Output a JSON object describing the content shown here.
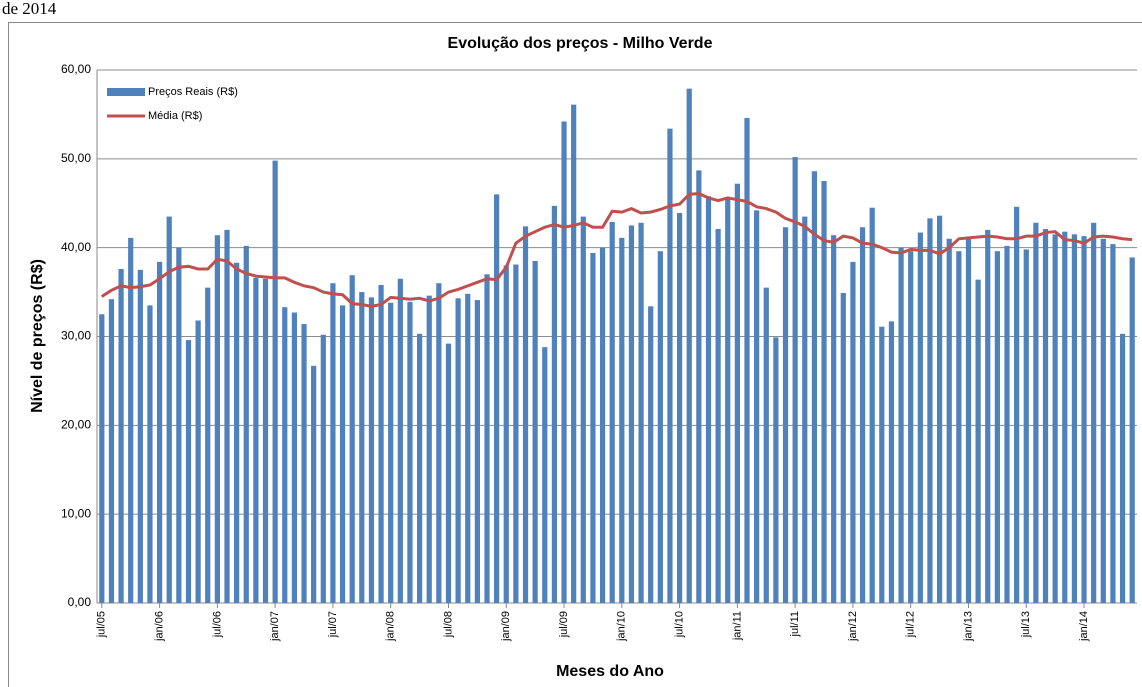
{
  "header_text": "de 2014",
  "chart_data": {
    "type": "bar",
    "title": "Evolução dos preços - Milho Verde",
    "x_label": "Meses do Ano",
    "y_label": "Nível de preços (R$)",
    "categories": [
      "jul/05",
      null,
      null,
      null,
      null,
      null,
      "jan/06",
      null,
      null,
      null,
      null,
      null,
      "jul/06",
      null,
      null,
      null,
      null,
      null,
      "jan/07",
      null,
      null,
      null,
      null,
      null,
      "jul/07",
      null,
      null,
      null,
      null,
      null,
      "jan/08",
      null,
      null,
      null,
      null,
      null,
      "jul/08",
      null,
      null,
      null,
      null,
      null,
      "jan/09",
      null,
      null,
      null,
      null,
      null,
      "jul/09",
      null,
      null,
      null,
      null,
      null,
      "jan/10",
      null,
      null,
      null,
      null,
      null,
      "jul/10",
      null,
      null,
      null,
      null,
      null,
      "jan/11",
      null,
      null,
      null,
      null,
      null,
      "jul/11",
      null,
      null,
      null,
      null,
      null,
      "jan/12",
      null,
      null,
      null,
      null,
      null,
      "jul/12",
      null,
      null,
      null,
      null,
      null,
      "jan/13",
      null,
      null,
      null,
      null,
      null,
      "jul/13",
      null,
      null,
      null,
      null,
      null,
      "jan/14",
      null,
      null,
      null,
      null,
      null
    ],
    "series": [
      {
        "name": "Preços Reais (R$)",
        "type": "bar",
        "color": "#4f81bd",
        "values": [
          32.5,
          34.2,
          37.6,
          41.1,
          37.5,
          33.5,
          38.4,
          43.5,
          40.0,
          29.6,
          31.8,
          35.5,
          41.4,
          42.0,
          38.3,
          40.2,
          36.6,
          36.5,
          49.8,
          33.3,
          32.7,
          31.4,
          26.7,
          30.2,
          36.0,
          33.5,
          36.9,
          35.0,
          34.4,
          35.8,
          33.8,
          36.5,
          33.9,
          30.3,
          34.6,
          36.0,
          29.2,
          34.3,
          34.8,
          34.1,
          37.0,
          46.0,
          38.0,
          38.1,
          42.4,
          38.5,
          28.8,
          44.7,
          54.2,
          56.1,
          43.5,
          39.4,
          40.0,
          42.9,
          41.1,
          42.5,
          42.8,
          33.4,
          39.6,
          53.4,
          43.9,
          57.9,
          48.7,
          45.8,
          42.1,
          45.6,
          47.2,
          54.6,
          44.2,
          35.5,
          29.9,
          42.3,
          50.2,
          43.5,
          48.6,
          47.5,
          41.4,
          34.9,
          38.4,
          42.3,
          44.5,
          31.1,
          31.7,
          40.0,
          39.6,
          41.7,
          43.3,
          43.6,
          41.0,
          39.6,
          41.0,
          36.4,
          42.0,
          39.6,
          40.2,
          44.6,
          39.8,
          42.8,
          42.1,
          41.5,
          41.8,
          41.5,
          41.3,
          42.8,
          41.0,
          40.4,
          30.3,
          38.9
        ]
      },
      {
        "name": "Média (R$)",
        "type": "line",
        "color": "#c0504d",
        "values": [
          34.5,
          35.2,
          35.7,
          35.5,
          35.6,
          35.8,
          36.5,
          37.3,
          37.8,
          37.9,
          37.6,
          37.6,
          38.7,
          38.5,
          37.6,
          37.1,
          36.8,
          36.7,
          36.6,
          36.6,
          36.1,
          35.7,
          35.5,
          35.0,
          34.8,
          34.7,
          33.7,
          33.6,
          33.4,
          33.6,
          34.4,
          34.3,
          34.2,
          34.3,
          34.0,
          34.3,
          35.0,
          35.3,
          35.7,
          36.1,
          36.5,
          36.4,
          37.8,
          40.5,
          41.3,
          41.8,
          42.3,
          42.6,
          42.3,
          42.5,
          42.8,
          42.3,
          42.3,
          44.1,
          44.0,
          44.4,
          43.9,
          44.0,
          44.3,
          44.7,
          44.9,
          46.0,
          46.1,
          45.6,
          45.3,
          45.6,
          45.4,
          45.2,
          44.6,
          44.4,
          44.0,
          43.3,
          42.9,
          42.4,
          41.5,
          40.8,
          40.6,
          41.3,
          41.1,
          40.5,
          40.4,
          40.0,
          39.5,
          39.4,
          39.8,
          39.7,
          39.7,
          39.3,
          40.0,
          41.0,
          41.1,
          41.2,
          41.3,
          41.2,
          41.0,
          41.0,
          41.3,
          41.3,
          41.7,
          41.8,
          40.9,
          40.8,
          40.5,
          41.2,
          41.3,
          41.2,
          41.0,
          40.9
        ]
      }
    ],
    "ylim": [
      0,
      60
    ],
    "yticks": [
      {
        "value": 0,
        "label": "0,00"
      },
      {
        "value": 10,
        "label": "10,00"
      },
      {
        "value": 20,
        "label": "20,00"
      },
      {
        "value": 30,
        "label": "30,00"
      },
      {
        "value": 40,
        "label": "40,00"
      },
      {
        "value": 50,
        "label": "50,00"
      },
      {
        "value": 60,
        "label": "60,00"
      }
    ],
    "grid": true,
    "legend": "top-left"
  }
}
